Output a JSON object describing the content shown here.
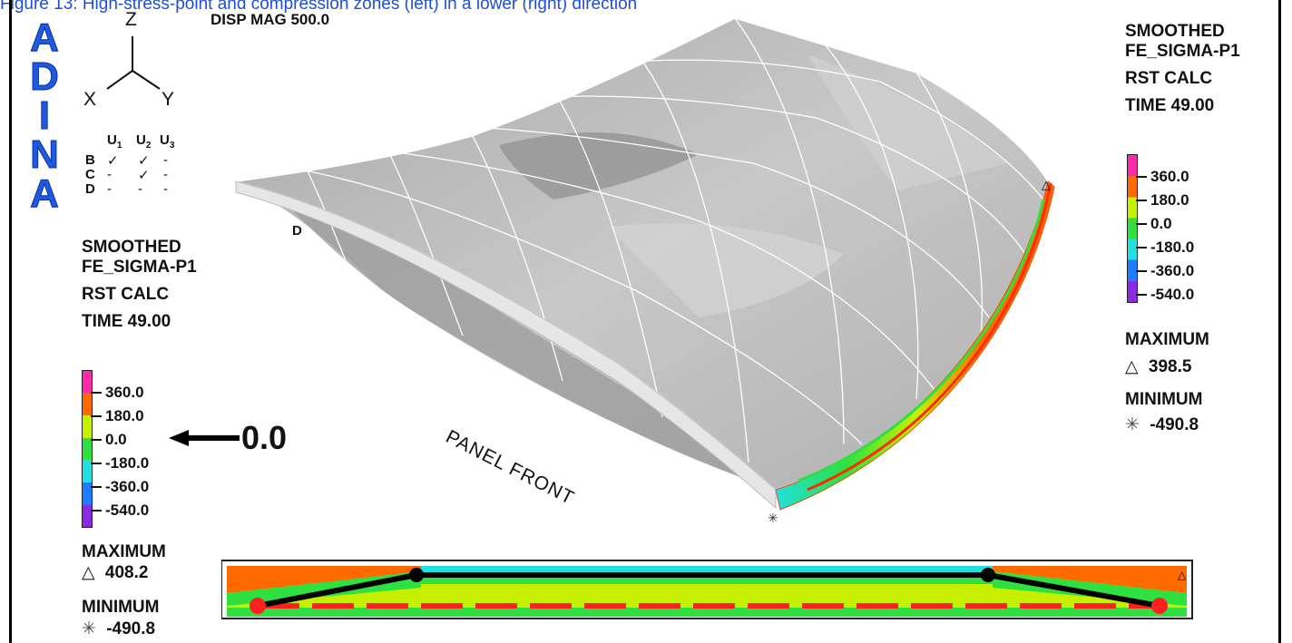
{
  "caption": "Figure 13: High-stress-point and compression zones (left) in a lower (right) direction",
  "logo": "ADINA",
  "disp_mag": "DISP MAG 500.0",
  "axes": {
    "z": "Z",
    "x": "X",
    "y": "Y"
  },
  "bc_table": {
    "headers": [
      "U1",
      "U2",
      "U3"
    ],
    "rows": [
      {
        "label": "B",
        "cells": [
          "✓",
          "✓",
          "-"
        ]
      },
      {
        "label": "C",
        "cells": [
          "-",
          "✓",
          "-"
        ]
      },
      {
        "label": "D",
        "cells": [
          "-",
          "-",
          "-"
        ]
      }
    ]
  },
  "point_label": "D",
  "panel_label": "PANEL FRONT",
  "left_legend": {
    "lines": [
      "SMOOTHED",
      "FE_SIGMA-P1",
      "RST CALC",
      "TIME 49.00"
    ],
    "ticks": [
      "360.0",
      "180.0",
      "0.0",
      "-180.0",
      "-360.0",
      "-540.0"
    ],
    "max_label": "MAXIMUM",
    "max_value": "408.2",
    "min_label": "MINIMUM",
    "min_value": "-490.8"
  },
  "right_legend": {
    "lines": [
      "SMOOTHED",
      "FE_SIGMA-P1",
      "RST CALC",
      "TIME 49.00"
    ],
    "ticks": [
      "360.0",
      "180.0",
      "0.0",
      "-180.0",
      "-360.0",
      "-540.0"
    ],
    "max_label": "MAXIMUM",
    "max_value": "398.5",
    "min_label": "MINIMUM",
    "min_value": "-490.8"
  },
  "zero_annotation": "0.0",
  "legend_colors": [
    "#ff2aa8",
    "#ff6a00",
    "#c6f000",
    "#2ee040",
    "#20e0e0",
    "#1e7cff",
    "#8a2be2"
  ],
  "markers": {
    "max": "△",
    "min": "✳"
  }
}
